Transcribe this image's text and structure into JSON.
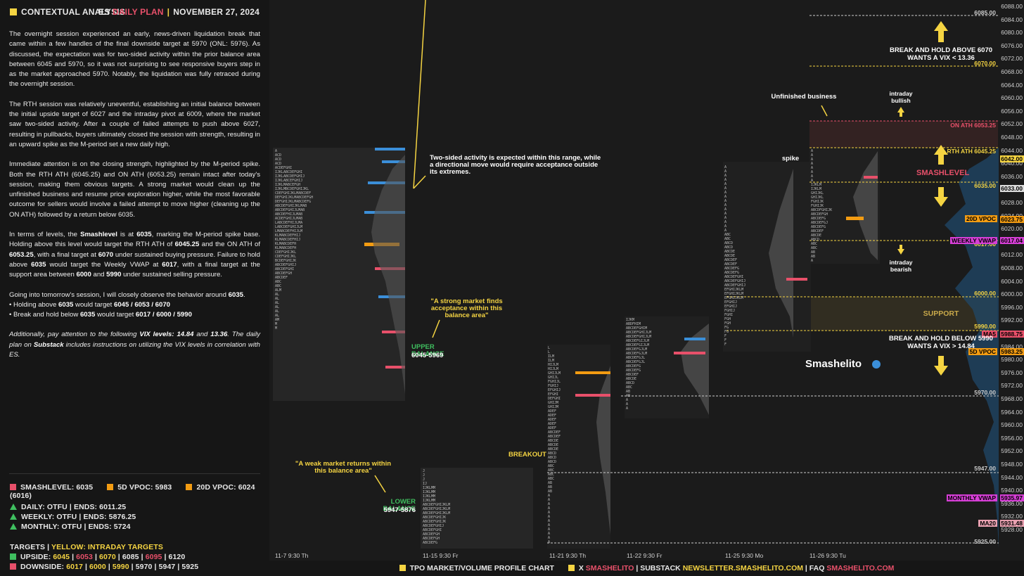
{
  "header": {
    "title": "CONTEXTUAL ANALYSIS",
    "product_prefix": "ES",
    "product_accent": "DAILY PLAN",
    "date": "NOVEMBER 27, 2024"
  },
  "paragraphs": {
    "p1": "The overnight session experienced an early, news-driven liquidation break that came within a few handles of the final downside target at 5970 (ONL: 5976). As discussed, the expectation was for two-sided activity within the prior balance area between 6045 and 5970, so it was not surprising to see responsive buyers step in as the market approached 5970. Notably, the liquidation was fully retraced during the overnight session.",
    "p2": "The RTH session was relatively uneventful, establishing an initial balance between the initial upside target of 6027 and the intraday pivot at 6009, where the market saw two-sided activity. After a couple of failed attempts to push above 6027, resulting in pullbacks, buyers ultimately closed the session with strength, resulting in an upward spike as the M-period set a new daily high.",
    "p3a": "Immediate attention is on the closing strength, highlighted by the M-period spike. Both the RTH ATH (6045.25) and ON ATH (6053.25) remain intact after today's session, making them obvious targets. A strong market would clean up the unfinished business and resume price exploration higher, while the most favorable outcome for sellers would involve a failed attempt to move higher (cleaning up the ON ATH) followed by a return below 6035.",
    "p4_1": "In terms of levels, the ",
    "p4_smash": "Smashlevel",
    "p4_2": " is at ",
    "p4_6035a": "6035",
    "p4_3": ", marking the M-period spike base. Holding above this level would target the RTH ATH of ",
    "p4_604525": "6045.25",
    "p4_4": " and the ON ATH of ",
    "p4_605325": "6053.25",
    "p4_5": ", with a final target at ",
    "p4_6070": "6070",
    "p4_6": " under sustained buying pressure. Failure to hold above ",
    "p4_6035b": "6035",
    "p4_7": " would target the Weekly VWAP at ",
    "p4_6017": "6017",
    "p4_8": ", with a final target at the support area between ",
    "p4_6000": "6000",
    "p4_9": " and ",
    "p4_5990": "5990",
    "p4_10": " under sustained selling pressure.",
    "p5_1": "Going into tomorrow's session, I will closely observe the behavior around ",
    "p5_6035": "6035",
    "p5_2": ".",
    "b1_1": "• Holding above ",
    "b1_6035": "6035",
    "b1_2": " would target ",
    "b1_targets": "6045 / 6053 / 6070",
    "b2_1": "• Break and hold below ",
    "b2_6035": "6035",
    "b2_2": " would target ",
    "b2_targets": "6017 / 6000 / 5990",
    "p6_1": "Additionally, pay attention to the following ",
    "p6_vix": "VIX levels: 14.84",
    "p6_2": " and ",
    "p6_1336": "13.36",
    "p6_3": ". The daily plan on ",
    "p6_substack": "Substack",
    "p6_4": " includes instructions on utilizing the VIX levels in correlation with ES."
  },
  "legend": {
    "smashlevel": "SMASHLEVEL: 6035",
    "vpoc5": "5D VPOC: 5983",
    "vpoc20": "20D VPOC: 6024 (6016)",
    "daily": "DAILY: OTFU",
    "daily_ends": "ENDS: 6011.25",
    "weekly": "WEEKLY: OTFU",
    "weekly_ends": "ENDS: 5876.25",
    "monthly": "MONTHLY: OTFU",
    "monthly_ends": "ENDS: 5724",
    "targets_label": "TARGETS",
    "targets_yellow": "YELLOW: INTRADAY TARGETS",
    "upside_label": "UPSIDE:",
    "upside": [
      "6045",
      "6053",
      "6070",
      "6085",
      "6095",
      "6120"
    ],
    "downside_label": "DOWNSIDE:",
    "downside": [
      "6017",
      "6000",
      "5990",
      "5970",
      "5947",
      "5925"
    ],
    "sep": "|"
  },
  "chart": {
    "y_ticks": [
      "6088.00",
      "6084.00",
      "6080.00",
      "6076.00",
      "6072.00",
      "6068.00",
      "6064.00",
      "6060.00",
      "6056.00",
      "6052.00",
      "6048.00",
      "6044.00",
      "6040.00",
      "6036.00",
      "6032.00",
      "6028.00",
      "6024.00",
      "6020.00",
      "6016.00",
      "6012.00",
      "6008.00",
      "6004.00",
      "6000.00",
      "5996.00",
      "5992.00",
      "5988.00",
      "5984.00",
      "5980.00",
      "5976.00",
      "5972.00",
      "5968.00",
      "5964.00",
      "5960.00",
      "5956.00",
      "5952.00",
      "5948.00",
      "5944.00",
      "5940.00",
      "5936.00",
      "5932.00",
      "5928.00"
    ],
    "x_labels": [
      "11-7  9:30 Th",
      "11-15  9:30 Fr",
      "11-21  9:30 Th",
      "11-22  9:30 Fr",
      "11-25  9:30 Mo",
      "11-26  9:30 Tu"
    ],
    "level_labels": {
      "l6085": "6085.00",
      "l6070": "6070.00",
      "on_ath": "ON ATH  6053.25",
      "rth_ath": "RTH ATH  6045.25",
      "l6035": "6035.00",
      "l6017": "6017.00",
      "l6000": "6000.00",
      "l5990": "5990.00",
      "l5970": "5970.00",
      "l5947": "5947.00",
      "l5925": "5925.00"
    },
    "axis_tags": {
      "t6042": "6042.00",
      "t6033": "6033.00",
      "t6024": "6023.75",
      "t6017": "6017.04",
      "t5988": "5988.75",
      "t5983": "5983.25",
      "t5935": "5935.97",
      "t5931": "5931.48"
    },
    "tag_labels": {
      "vpoc20": "20D VPOC",
      "wvwap": "WEEKLY VWAP",
      "ma5": "MA5",
      "vpoc5": "5D VPOC",
      "mvwap": "MONTHLY VWAP",
      "ma20": "MA20"
    },
    "annotations": {
      "two_sided": "Two-sided activity is expected within this range, while a directional move would require acceptance outside its extremes.",
      "strong_market": "\"A strong market finds acceptance within this balance area\"",
      "upper_balance": "UPPER BALANCE",
      "upper_range": "6045-5969",
      "weak_market": "\"A weak market returns within this balance area\"",
      "lower_balance": "LOWER BALANCE",
      "lower_range": "5947-5876",
      "breakout": "BREAKOUT",
      "unfinished": "Unfinished business",
      "intraday_bullish": "intraday bullish",
      "intraday_bearish": "intraday bearish",
      "spike": "spike",
      "smashlevel": "SMASHLEVEL",
      "support": "SUPPORT",
      "break_above": "BREAK AND HOLD ABOVE 6070",
      "vix_above": "WANTS A VIX < 13.36",
      "break_below": "BREAK AND HOLD BELOW 5990",
      "vix_below": "WANTS A VIX > 14.84",
      "brand": "Smashelito"
    }
  },
  "footer": {
    "chart_type": "TPO MARKET/VOLUME PROFILE CHART",
    "x_label": "X",
    "x_handle": "SMASHELITO",
    "substack_label": "SUBSTACK",
    "substack_url": "NEWSLETTER.SMASHELITO.COM",
    "faq_label": "FAQ",
    "faq_url": "SMASHELITO.COM",
    "sep": "|"
  },
  "colors": {
    "yellow": "#f5d442",
    "red": "#e8506a",
    "orange": "#f39c12",
    "green": "#3fbf5f",
    "blue": "#3b8fd9",
    "magenta": "#d63fd6"
  }
}
